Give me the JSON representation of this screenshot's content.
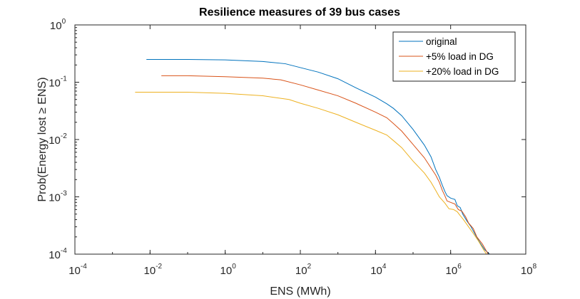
{
  "chart_data": {
    "type": "line",
    "title": "Resilience measures of 39 bus cases",
    "xlabel": "ENS (MWh)",
    "ylabel": "Prob(Energy lost ≥ ENS)",
    "x_scale": "log",
    "y_scale": "log",
    "xlim": [
      0.0001,
      100000000
    ],
    "ylim": [
      0.0001,
      1
    ],
    "x_ticks": [
      {
        "base": "10",
        "exp": "-4",
        "value": 0.0001
      },
      {
        "base": "10",
        "exp": "-2",
        "value": 0.01
      },
      {
        "base": "10",
        "exp": "0",
        "value": 1
      },
      {
        "base": "10",
        "exp": "2",
        "value": 100
      },
      {
        "base": "10",
        "exp": "4",
        "value": 10000
      },
      {
        "base": "10",
        "exp": "6",
        "value": 1000000
      },
      {
        "base": "10",
        "exp": "8",
        "value": 100000000
      }
    ],
    "y_ticks": [
      {
        "base": "10",
        "exp": "-4",
        "value": 0.0001
      },
      {
        "base": "10",
        "exp": "-3",
        "value": 0.001
      },
      {
        "base": "10",
        "exp": "-2",
        "value": 0.01
      },
      {
        "base": "10",
        "exp": "-1",
        "value": 0.1
      },
      {
        "base": "10",
        "exp": "0",
        "value": 1
      }
    ],
    "grid": false,
    "legend_position": "top-right",
    "series": [
      {
        "name": "original",
        "color": "#0072BD",
        "points": [
          [
            0.008,
            0.25
          ],
          [
            0.1,
            0.25
          ],
          [
            1,
            0.245
          ],
          [
            10,
            0.23
          ],
          [
            40,
            0.21
          ],
          [
            100,
            0.18
          ],
          [
            300,
            0.15
          ],
          [
            1000,
            0.115
          ],
          [
            3000,
            0.08
          ],
          [
            10000,
            0.055
          ],
          [
            20000,
            0.042
          ],
          [
            30000,
            0.035
          ],
          [
            50000,
            0.026
          ],
          [
            100000,
            0.015
          ],
          [
            200000,
            0.008
          ],
          [
            300000,
            0.005
          ],
          [
            400000,
            0.003
          ],
          [
            500000,
            0.0022
          ],
          [
            600000,
            0.0016
          ],
          [
            700000,
            0.00125
          ],
          [
            800000,
            0.00105
          ],
          [
            1000000,
            0.00095
          ],
          [
            1300000,
            0.0009
          ],
          [
            1500000,
            0.0007
          ],
          [
            1800000,
            0.00065
          ],
          [
            2100000,
            0.0005
          ],
          [
            2700000,
            0.00038
          ],
          [
            3500000,
            0.0003
          ],
          [
            4500000,
            0.00022
          ],
          [
            6000000,
            0.00016
          ],
          [
            8000000,
            0.00012
          ],
          [
            11000000,
            0.0001
          ]
        ]
      },
      {
        "name": "+5% load in DG",
        "color": "#D95319",
        "points": [
          [
            0.02,
            0.13
          ],
          [
            0.1,
            0.13
          ],
          [
            1,
            0.125
          ],
          [
            10,
            0.118
          ],
          [
            30,
            0.11
          ],
          [
            100,
            0.09
          ],
          [
            300,
            0.073
          ],
          [
            1000,
            0.058
          ],
          [
            3000,
            0.043
          ],
          [
            10000,
            0.03
          ],
          [
            20000,
            0.024
          ],
          [
            30000,
            0.019
          ],
          [
            50000,
            0.014
          ],
          [
            100000,
            0.0082
          ],
          [
            200000,
            0.0048
          ],
          [
            300000,
            0.0032
          ],
          [
            400000,
            0.0024
          ],
          [
            500000,
            0.0018
          ],
          [
            600000,
            0.0013
          ],
          [
            700000,
            0.00105
          ],
          [
            800000,
            0.00085
          ],
          [
            1000000,
            0.0008
          ],
          [
            1300000,
            0.00075
          ],
          [
            1600000,
            0.0006
          ],
          [
            2000000,
            0.00056
          ],
          [
            2500000,
            0.00045
          ],
          [
            3000000,
            0.00035
          ],
          [
            4000000,
            0.00028
          ],
          [
            5000000,
            0.0002
          ],
          [
            7000000,
            0.00015
          ],
          [
            10000000,
            0.0001
          ]
        ]
      },
      {
        "name": "+20% load in DG",
        "color": "#EDB120",
        "points": [
          [
            0.004,
            0.067
          ],
          [
            0.1,
            0.067
          ],
          [
            1,
            0.064
          ],
          [
            10,
            0.058
          ],
          [
            50,
            0.05
          ],
          [
            100,
            0.043
          ],
          [
            300,
            0.035
          ],
          [
            1000,
            0.027
          ],
          [
            3000,
            0.02
          ],
          [
            10000,
            0.0145
          ],
          [
            20000,
            0.012
          ],
          [
            30000,
            0.0096
          ],
          [
            50000,
            0.0072
          ],
          [
            100000,
            0.0042
          ],
          [
            200000,
            0.0026
          ],
          [
            300000,
            0.0018
          ],
          [
            400000,
            0.0013
          ],
          [
            500000,
            0.001
          ],
          [
            700000,
            0.00078
          ],
          [
            900000,
            0.00062
          ],
          [
            1200000,
            0.0006
          ],
          [
            1500000,
            0.00055
          ],
          [
            1800000,
            0.00047
          ],
          [
            2200000,
            0.0004
          ],
          [
            3000000,
            0.0003
          ],
          [
            4000000,
            0.00023
          ],
          [
            5500000,
            0.00017
          ],
          [
            7500000,
            0.00012
          ],
          [
            9000000,
            0.0001
          ]
        ]
      }
    ]
  }
}
